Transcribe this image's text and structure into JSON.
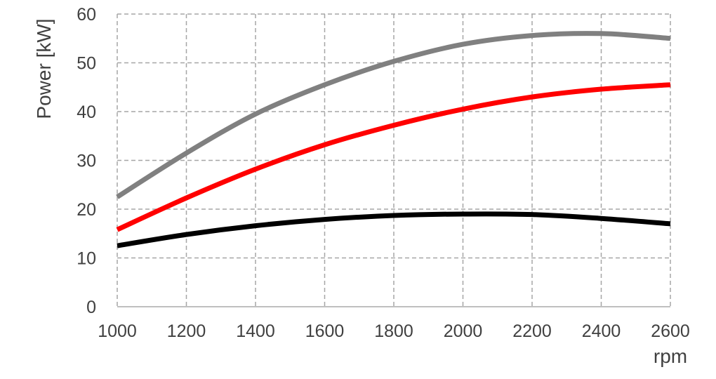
{
  "chart_data": {
    "type": "line",
    "xlabel": "rpm",
    "ylabel": "Power [kW]",
    "xlim": [
      1000,
      2600
    ],
    "ylim": [
      0,
      60
    ],
    "xticks": [
      1000,
      1200,
      1400,
      1600,
      1800,
      2000,
      2200,
      2400,
      2600
    ],
    "yticks": [
      0,
      10,
      20,
      30,
      40,
      50,
      60
    ],
    "grid": true,
    "grid_style": "dashed",
    "legend": "none",
    "x": [
      1000,
      1200,
      1400,
      1600,
      1800,
      2000,
      2200,
      2400,
      2600
    ],
    "series": [
      {
        "color": "#808080",
        "values": [
          22.5,
          31.5,
          39.5,
          45.5,
          50.3,
          53.8,
          55.6,
          56.0,
          55.0
        ]
      },
      {
        "color": "#ff0000",
        "values": [
          15.8,
          22.3,
          28.2,
          33.2,
          37.2,
          40.5,
          43.0,
          44.6,
          45.5
        ]
      },
      {
        "color": "#000000",
        "values": [
          12.5,
          14.8,
          16.6,
          17.9,
          18.7,
          19.0,
          18.9,
          18.1,
          17.0
        ]
      }
    ]
  }
}
